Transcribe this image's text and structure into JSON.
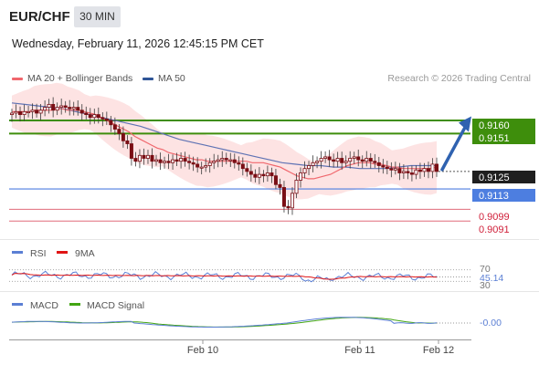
{
  "header": {
    "pair": "EUR/CHF",
    "timeframe": "30 MIN",
    "datetime": "Wednesday, February 11, 2026 12:45:15 PM CET"
  },
  "legend": {
    "ma20": "MA 20 + Bollinger Bands",
    "ma50": "MA 50",
    "credit": "Research © 2026 Trading Central"
  },
  "colors": {
    "bull": "#7a0e14",
    "bear": "#7a0e14",
    "ma20": "#f0676d",
    "ma50": "#5f73b4",
    "band_fill": "#fde3e3",
    "green": "#3e8e0c",
    "blue": "#4d7ee0",
    "red": "#e06b7a",
    "arrow": "#2f62b0",
    "rsi": "#5b7fd4",
    "rsi_ma": "#e01414",
    "macd": "#5b7fd4",
    "macd_signal": "#42a512"
  },
  "chart_data": [
    {
      "type": "candlestick",
      "title": "EUR/CHF",
      "x_tick_labels": [
        "Feb 10",
        "Feb 11",
        "Feb 12"
      ],
      "ylim": [
        0.9083,
        0.918
      ],
      "levels": [
        {
          "value": 0.916,
          "label": "0.9160",
          "kind": "resistance"
        },
        {
          "value": 0.9151,
          "label": "0.9151",
          "kind": "resistance"
        },
        {
          "value": 0.9125,
          "label": "0.9125",
          "kind": "last"
        },
        {
          "value": 0.9113,
          "label": "0.9113",
          "kind": "pivot"
        },
        {
          "value": 0.9099,
          "label": "0.9099",
          "kind": "support"
        },
        {
          "value": 0.9091,
          "label": "0.9091",
          "kind": "support"
        }
      ],
      "closes": [
        0.9165,
        0.9166,
        0.9164,
        0.9166,
        0.9166,
        0.9167,
        0.9165,
        0.9167,
        0.9169,
        0.9171,
        0.9167,
        0.9169,
        0.917,
        0.9169,
        0.9168,
        0.9169,
        0.9167,
        0.9165,
        0.9164,
        0.9162,
        0.9164,
        0.9162,
        0.9161,
        0.916,
        0.9157,
        0.9154,
        0.9151,
        0.9146,
        0.9144,
        0.9134,
        0.9132,
        0.9136,
        0.9134,
        0.9136,
        0.9132,
        0.9133,
        0.9131,
        0.9132,
        0.9131,
        0.9133,
        0.9132,
        0.9134,
        0.9132,
        0.9131,
        0.913,
        0.9128,
        0.9128,
        0.9129,
        0.9131,
        0.9132,
        0.9133,
        0.9134,
        0.9133,
        0.9133,
        0.9131,
        0.913,
        0.9127,
        0.9125,
        0.9123,
        0.9121,
        0.9123,
        0.9122,
        0.9124,
        0.9122,
        0.9116,
        0.9114,
        0.9101,
        0.91,
        0.911,
        0.9119,
        0.9124,
        0.9127,
        0.9129,
        0.9131,
        0.9132,
        0.9134,
        0.9135,
        0.9133,
        0.9132,
        0.9134,
        0.9131,
        0.9132,
        0.9134,
        0.9135,
        0.9133,
        0.9132,
        0.9134,
        0.9132,
        0.9131,
        0.9129,
        0.9128,
        0.9127,
        0.9126,
        0.9127,
        0.9124,
        0.9125,
        0.9124,
        0.9123,
        0.9126,
        0.9125,
        0.9127,
        0.9125,
        0.913,
        0.9125
      ],
      "ma20": [
        0.9166,
        0.9166,
        0.9166,
        0.9166,
        0.9167,
        0.9167,
        0.9167,
        0.9167,
        0.9168,
        0.9168,
        0.9167,
        0.9167,
        0.9167,
        0.9166,
        0.9165,
        0.9164,
        0.9162,
        0.916,
        0.9158,
        0.9156,
        0.9154,
        0.9152,
        0.9149,
        0.9147,
        0.9145,
        0.9143,
        0.9141,
        0.914,
        0.9138,
        0.9137,
        0.9136,
        0.9135,
        0.9134,
        0.9133,
        0.9133,
        0.9132,
        0.9132,
        0.9132,
        0.9132,
        0.9132,
        0.9132,
        0.9132,
        0.9132,
        0.9131,
        0.9131,
        0.9131,
        0.913,
        0.9129,
        0.9128,
        0.9126,
        0.9124,
        0.9122,
        0.9121,
        0.912,
        0.912,
        0.9121,
        0.9122,
        0.9123,
        0.9125,
        0.9127,
        0.9129,
        0.913,
        0.9131,
        0.9131,
        0.9131,
        0.913,
        0.913,
        0.9129,
        0.9128,
        0.9128,
        0.9127,
        0.9127,
        0.9127,
        0.9127,
        0.9127,
        0.9127,
        0.9128
      ],
      "ma50": [
        0.9172,
        0.9171,
        0.917,
        0.9169,
        0.9168,
        0.9166,
        0.9164,
        0.9162,
        0.916,
        0.9158,
        0.9156,
        0.9153,
        0.915,
        0.9147,
        0.9145,
        0.9143,
        0.9141,
        0.9139,
        0.9137,
        0.9135,
        0.9133,
        0.9131,
        0.913,
        0.9129,
        0.9129,
        0.9128,
        0.9128,
        0.9127,
        0.9127,
        0.9127,
        0.9128,
        0.9129,
        0.9129,
        0.9129
      ],
      "projection_target": 0.9159
    },
    {
      "type": "line",
      "title": "RSI",
      "series": [
        {
          "name": "RSI"
        },
        {
          "name": "9MA"
        }
      ],
      "levels": [
        70,
        30
      ],
      "last_value": 45.14,
      "last_label": "45.14",
      "ylim": [
        0,
        100
      ]
    },
    {
      "type": "line",
      "title": "MACD",
      "series": [
        {
          "name": "MACD"
        },
        {
          "name": "MACD Signal"
        }
      ],
      "last_value": 0,
      "last_label": "-0.00"
    }
  ],
  "rsi_labels": {
    "rsi": "RSI",
    "ma": "9MA",
    "l70": "70",
    "l30": "30",
    "value": "45.14"
  },
  "macd_labels": {
    "macd": "MACD",
    "signal": "MACD Signal",
    "value": "-0.00"
  },
  "axis": {
    "t1": "Feb 10",
    "t2": "Feb 11",
    "t3": "Feb 12"
  }
}
